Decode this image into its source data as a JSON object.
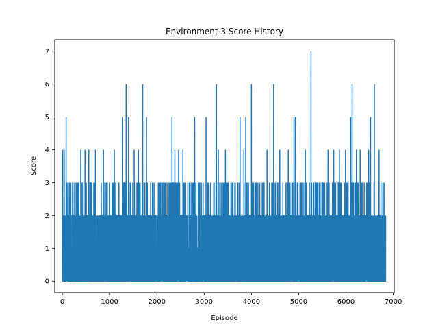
{
  "chart_data": {
    "type": "line",
    "title": "Environment 3 Score History",
    "xlabel": "Episode",
    "ylabel": "Score",
    "xlim": [
      -160,
      7020
    ],
    "ylim": [
      -0.35,
      7.35
    ],
    "xticks": [
      0,
      1000,
      2000,
      3000,
      4000,
      5000,
      6000,
      7000
    ],
    "yticks": [
      0,
      1,
      2,
      3,
      4,
      5,
      6,
      7
    ],
    "grid": false,
    "legend": "none",
    "episode_count": 6840,
    "series": [
      {
        "color": "#1f77b4",
        "note_values": "Approximate peak scores read from the plot (episode, score); all other episodes oscillate mostly between 0 and 2-3.",
        "peaks": [
          [
            10,
            4
          ],
          [
            40,
            4
          ],
          [
            80,
            5
          ],
          [
            150,
            3
          ],
          [
            260,
            3
          ],
          [
            390,
            4
          ],
          [
            480,
            4
          ],
          [
            560,
            4
          ],
          [
            700,
            4
          ],
          [
            870,
            4
          ],
          [
            1000,
            3
          ],
          [
            1100,
            4
          ],
          [
            1270,
            5
          ],
          [
            1350,
            6
          ],
          [
            1400,
            5
          ],
          [
            1520,
            4
          ],
          [
            1610,
            4
          ],
          [
            1700,
            6
          ],
          [
            1780,
            5
          ],
          [
            2070,
            3
          ],
          [
            2320,
            5
          ],
          [
            2380,
            4
          ],
          [
            2460,
            4
          ],
          [
            2550,
            4
          ],
          [
            2800,
            5
          ],
          [
            2900,
            3
          ],
          [
            3040,
            5
          ],
          [
            3260,
            6
          ],
          [
            3300,
            4
          ],
          [
            3450,
            4
          ],
          [
            3760,
            5
          ],
          [
            3840,
            4
          ],
          [
            3880,
            5
          ],
          [
            4000,
            6
          ],
          [
            4100,
            3
          ],
          [
            4330,
            4
          ],
          [
            4470,
            6
          ],
          [
            4600,
            4
          ],
          [
            4780,
            4
          ],
          [
            4900,
            5
          ],
          [
            4930,
            5
          ],
          [
            5060,
            3
          ],
          [
            5140,
            4
          ],
          [
            5260,
            7
          ],
          [
            5350,
            3
          ],
          [
            5620,
            4
          ],
          [
            5740,
            4
          ],
          [
            5860,
            4
          ],
          [
            5990,
            4
          ],
          [
            6100,
            5
          ],
          [
            6130,
            6
          ],
          [
            6220,
            4
          ],
          [
            6300,
            4
          ],
          [
            6480,
            4
          ],
          [
            6520,
            5
          ],
          [
            6600,
            6
          ],
          [
            6700,
            4
          ]
        ]
      }
    ]
  }
}
